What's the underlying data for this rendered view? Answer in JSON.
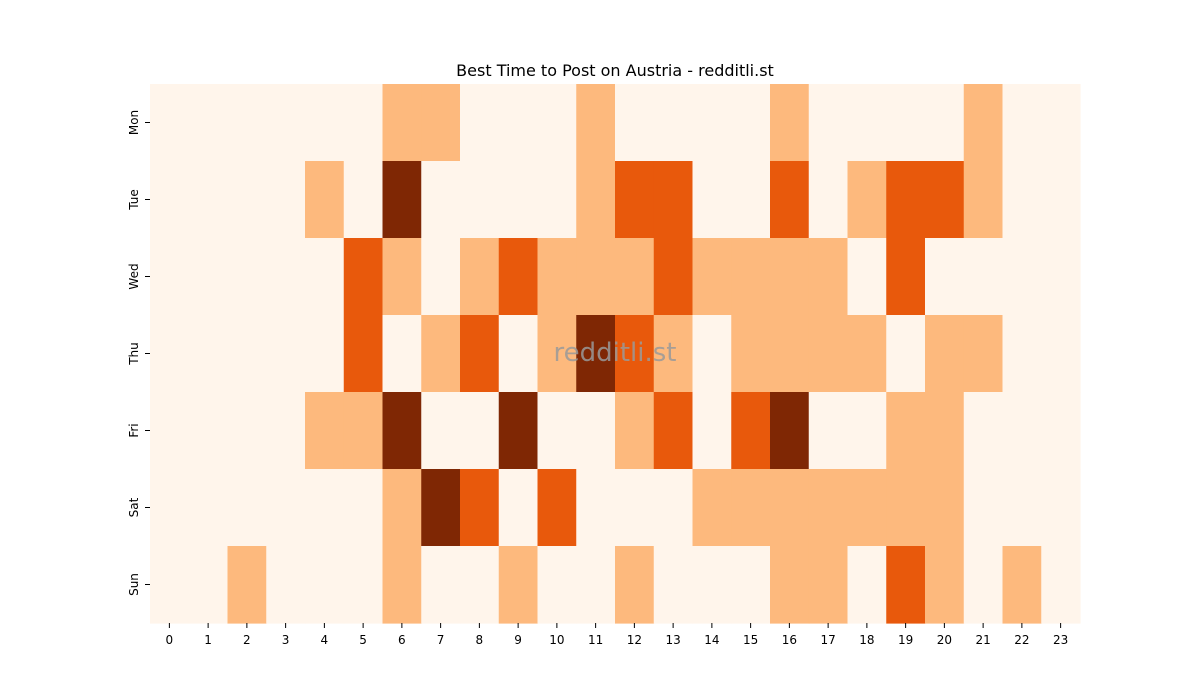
{
  "chart_data": {
    "type": "heatmap",
    "title": "Best Time to Post on Austria - redditli.st",
    "watermark": "redditli.st",
    "x_categories": [
      "0",
      "1",
      "2",
      "3",
      "4",
      "5",
      "6",
      "7",
      "8",
      "9",
      "10",
      "11",
      "12",
      "13",
      "14",
      "15",
      "16",
      "17",
      "18",
      "19",
      "20",
      "21",
      "22",
      "23"
    ],
    "y_categories": [
      "Mon",
      "Tue",
      "Wed",
      "Thu",
      "Fri",
      "Sat",
      "Sun"
    ],
    "xlabel": "",
    "ylabel": "",
    "colorscale": [
      "#fff5eb",
      "#fdb97d",
      "#e8590c",
      "#7f2704"
    ],
    "values": [
      [
        0,
        0,
        0,
        0,
        0,
        0,
        1,
        1,
        0,
        0,
        0,
        1,
        0,
        0,
        0,
        0,
        1,
        0,
        0,
        0,
        0,
        1,
        0,
        0
      ],
      [
        0,
        0,
        0,
        0,
        1,
        0,
        3,
        0,
        0,
        0,
        0,
        1,
        2,
        2,
        0,
        0,
        2,
        0,
        1,
        2,
        2,
        1,
        0,
        0
      ],
      [
        0,
        0,
        0,
        0,
        0,
        2,
        1,
        0,
        1,
        2,
        1,
        1,
        1,
        2,
        1,
        1,
        1,
        1,
        0,
        2,
        0,
        0,
        0,
        0
      ],
      [
        0,
        0,
        0,
        0,
        0,
        2,
        0,
        1,
        2,
        0,
        1,
        3,
        2,
        1,
        0,
        1,
        1,
        1,
        1,
        0,
        1,
        1,
        0,
        0
      ],
      [
        0,
        0,
        0,
        0,
        1,
        1,
        3,
        0,
        0,
        3,
        0,
        0,
        1,
        2,
        0,
        2,
        3,
        0,
        0,
        1,
        1,
        0,
        0,
        0
      ],
      [
        0,
        0,
        0,
        0,
        0,
        0,
        1,
        3,
        2,
        0,
        2,
        0,
        0,
        0,
        1,
        1,
        1,
        1,
        1,
        1,
        1,
        0,
        0,
        0
      ],
      [
        0,
        0,
        1,
        0,
        0,
        0,
        1,
        0,
        0,
        1,
        0,
        0,
        1,
        0,
        0,
        0,
        1,
        1,
        0,
        2,
        1,
        0,
        1,
        0
      ]
    ]
  }
}
